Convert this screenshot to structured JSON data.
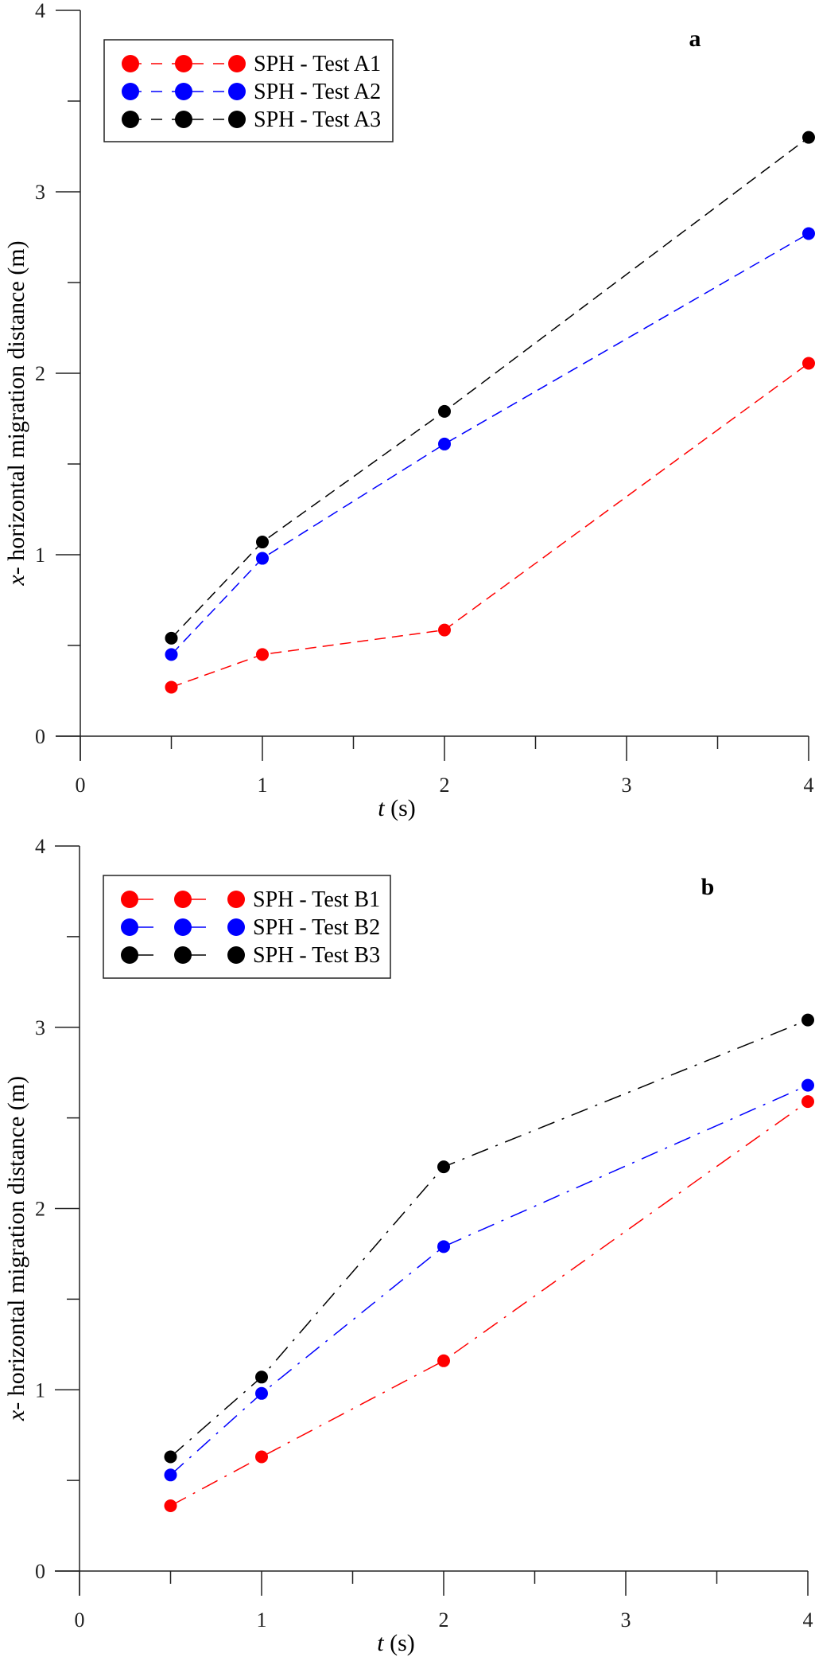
{
  "chart_data": [
    {
      "type": "line",
      "panel_label": "a",
      "xlabel_italic": "t",
      "xlabel_unit": " (s)",
      "ylabel_italic": "x",
      "ylabel_rest": "- horizontal migration distance (m)",
      "xlim": [
        0,
        4
      ],
      "ylim": [
        0,
        4
      ],
      "xticks": [
        "0",
        "1",
        "2",
        "3",
        "4"
      ],
      "yticks": [
        "0",
        "1",
        "2",
        "3",
        "4"
      ],
      "grid": false,
      "legend_placement": "top-left",
      "line_style": "dashed",
      "x": [
        0.5,
        1,
        2,
        4
      ],
      "series": [
        {
          "name": "SPH - Test A1",
          "color": "#ff0000",
          "values": [
            0.27,
            0.45,
            0.585,
            2.055
          ]
        },
        {
          "name": "SPH - Test A2",
          "color": "#0000ff",
          "values": [
            0.45,
            0.98,
            1.61,
            2.77
          ]
        },
        {
          "name": "SPH - Test A3",
          "color": "#000000",
          "values": [
            0.54,
            1.07,
            1.79,
            3.3
          ]
        }
      ]
    },
    {
      "type": "line",
      "panel_label": "b",
      "xlabel_italic": "t",
      "xlabel_unit": " (s)",
      "ylabel_italic": "x",
      "ylabel_rest": "- horizontal migration distance (m)",
      "xlim": [
        0,
        4
      ],
      "ylim": [
        0,
        4
      ],
      "xticks": [
        "0",
        "1",
        "2",
        "3",
        "4"
      ],
      "yticks": [
        "0",
        "1",
        "2",
        "3",
        "4"
      ],
      "grid": false,
      "legend_placement": "top-left",
      "line_style": "dash-dot",
      "x": [
        0.5,
        1,
        2,
        4
      ],
      "series": [
        {
          "name": "SPH - Test B1",
          "color": "#ff0000",
          "values": [
            0.36,
            0.63,
            1.16,
            2.59
          ]
        },
        {
          "name": "SPH - Test B2",
          "color": "#0000ff",
          "values": [
            0.53,
            0.98,
            1.79,
            2.68
          ]
        },
        {
          "name": "SPH - Test B3",
          "color": "#000000",
          "values": [
            0.63,
            1.07,
            2.23,
            3.04
          ]
        }
      ]
    }
  ]
}
